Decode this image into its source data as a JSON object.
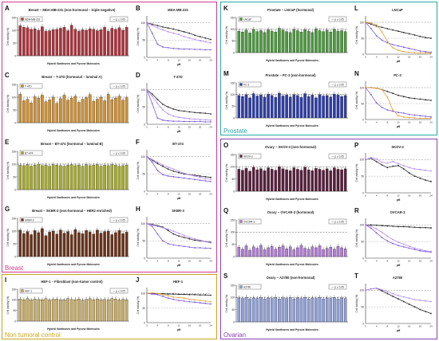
{
  "groups": {
    "breast": {
      "label": "Breast",
      "color": "#cc3c8c"
    },
    "noncontrol": {
      "label": "Non tumoral control",
      "color": "#c7a61d"
    },
    "prostate": {
      "label": "Prostate",
      "color": "#2aa6a6"
    },
    "ovarian": {
      "label": "Ovarian",
      "color": "#8a3fb5"
    }
  },
  "shared": {
    "bar_xlabel": "Hybrid Xanthones and Pyrone Molecules",
    "bar_ylabel": "Cell viability (%)",
    "line_ylabel": "Cell viability (%)",
    "line_xlabel": "μM",
    "significance": "p ≤ 0.05"
  },
  "chart_data": [
    {
      "id": "A",
      "type": "bar",
      "title": "Breast – MDA-MB-231 (non-hormonal – triple negative)",
      "legend": "MDA-MB-231",
      "color": "#b0323a",
      "ylim": [
        0,
        150
      ],
      "values": [
        118,
        112,
        110,
        104,
        106,
        100,
        114,
        96,
        98,
        102,
        104,
        108,
        112,
        98,
        120,
        104,
        96,
        102,
        100,
        106,
        104,
        98,
        102,
        112,
        96,
        108,
        104,
        110,
        100,
        112
      ]
    },
    {
      "id": "B",
      "type": "line",
      "title": "MDA-MB-231",
      "ylim": [
        0,
        120
      ],
      "x": [
        0,
        2,
        4,
        6,
        8,
        10,
        12,
        14,
        16,
        18,
        20,
        22,
        24
      ],
      "series": [
        {
          "color": "#2a2a2a",
          "values": [
            100,
            96,
            92,
            88,
            85,
            82,
            78,
            74,
            70,
            64,
            60,
            56,
            52
          ]
        },
        {
          "color": "#7a5cd6",
          "values": [
            100,
            70,
            38,
            30,
            28,
            26,
            25,
            24,
            24,
            23,
            23,
            22,
            22
          ]
        },
        {
          "color": "#b38cf0",
          "values": [
            100,
            92,
            86,
            80,
            74,
            70,
            66,
            60,
            56,
            52,
            48,
            45,
            42
          ]
        }
      ]
    },
    {
      "id": "C",
      "type": "bar",
      "title": "Breast – T-47D (hormonal – luminal A)",
      "legend": "T-47D",
      "color": "#d1902f",
      "ylim": [
        0,
        150
      ],
      "values": [
        112,
        86,
        92,
        78,
        102,
        96,
        108,
        82,
        90,
        100,
        76,
        94,
        108,
        88,
        96,
        104,
        80,
        92,
        98,
        110,
        84,
        92,
        100,
        86,
        112,
        90,
        96,
        104,
        88,
        98
      ]
    },
    {
      "id": "D",
      "type": "line",
      "title": "T-47D",
      "ylim": [
        0,
        120
      ],
      "x": [
        0,
        2,
        4,
        6,
        8,
        10,
        12,
        14,
        16,
        18,
        20,
        22,
        24
      ],
      "series": [
        {
          "color": "#2a2a2a",
          "values": [
            100,
            88,
            72,
            58,
            50,
            44,
            40,
            38,
            36,
            34,
            33,
            32,
            30
          ]
        },
        {
          "color": "#7a5cd6",
          "values": [
            100,
            60,
            18,
            12,
            10,
            9,
            9,
            8,
            8,
            8,
            8,
            7,
            7
          ]
        },
        {
          "color": "#b38cf0",
          "values": [
            100,
            82,
            60,
            42,
            30,
            24,
            20,
            18,
            16,
            15,
            14,
            13,
            12
          ]
        }
      ]
    },
    {
      "id": "E",
      "type": "bar",
      "title": "Breast – BT-474 (hormonal – luminal B)",
      "legend": "BT-474",
      "color": "#a7ab2a",
      "ylim": [
        0,
        150
      ],
      "values": [
        96,
        94,
        98,
        92,
        96,
        100,
        94,
        96,
        92,
        98,
        96,
        94,
        92,
        96,
        98,
        94,
        96,
        92,
        98,
        94,
        96,
        98,
        92,
        96,
        94,
        98,
        96,
        92,
        94,
        96
      ]
    },
    {
      "id": "F",
      "type": "line",
      "title": "BT-474",
      "ylim": [
        0,
        120
      ],
      "x": [
        0,
        2,
        4,
        6,
        8,
        10,
        12,
        14,
        16,
        18,
        20,
        22,
        24
      ],
      "series": [
        {
          "color": "#2a2a2a",
          "values": [
            100,
            90,
            80,
            72,
            64,
            58,
            54,
            50,
            48,
            46,
            44,
            42,
            40
          ]
        },
        {
          "color": "#7a5cd6",
          "values": [
            100,
            84,
            60,
            48,
            44,
            42,
            40,
            38,
            36,
            34,
            32,
            30,
            28
          ]
        },
        {
          "color": "#b38cf0",
          "values": [
            100,
            92,
            84,
            76,
            70,
            64,
            58,
            52,
            48,
            44,
            40,
            36,
            34
          ]
        }
      ]
    },
    {
      "id": "G",
      "type": "bar",
      "title": "Breast – SKBR-3 (non-hormonal – HER2 enriched)",
      "legend": "SKBR-3",
      "color": "#6b3218",
      "ylim": [
        0,
        150
      ],
      "values": [
        104,
        90,
        98,
        86,
        102,
        94,
        110,
        82,
        96,
        100,
        88,
        104,
        92,
        98,
        86,
        106,
        94,
        90,
        102,
        96,
        88,
        104,
        92,
        98,
        100,
        86,
        94,
        102,
        90,
        96
      ]
    },
    {
      "id": "H",
      "type": "line",
      "title": "SKBR-3",
      "ylim": [
        0,
        120
      ],
      "x": [
        0,
        2,
        4,
        6,
        8,
        10,
        12,
        14,
        16,
        18,
        20,
        22,
        24
      ],
      "series": [
        {
          "color": "#2a2a2a",
          "values": [
            100,
            98,
            94,
            90,
            80,
            70,
            64,
            60,
            56,
            52,
            50,
            48,
            46
          ]
        },
        {
          "color": "#7a5cd6",
          "values": [
            100,
            92,
            70,
            50,
            42,
            38,
            36,
            34,
            32,
            30,
            30,
            29,
            28
          ]
        },
        {
          "color": "#b38cf0",
          "values": [
            100,
            96,
            92,
            88,
            84,
            78,
            72,
            66,
            60,
            56,
            52,
            48,
            44
          ]
        }
      ]
    },
    {
      "id": "I",
      "type": "bar",
      "title": "HEF-1 – Fibroblast (non-tumor control)",
      "legend": "HEF-1",
      "color": "#c9ad63",
      "ylim": [
        0,
        150
      ],
      "values": [
        104,
        100,
        106,
        98,
        104,
        102,
        100,
        106,
        98,
        102,
        104,
        100,
        98,
        106,
        102,
        100,
        104,
        98,
        102,
        106,
        100,
        104,
        98,
        102,
        100,
        106,
        104,
        98,
        102,
        100
      ]
    },
    {
      "id": "J",
      "type": "line",
      "title": "HEF-1",
      "ylim": [
        0,
        120
      ],
      "x": [
        0,
        2,
        4,
        6,
        8,
        10,
        12,
        14,
        16,
        18,
        20,
        22,
        24
      ],
      "series": [
        {
          "color": "#2a2a2a",
          "values": [
            100,
            100,
            99,
            99,
            98,
            98,
            97,
            97,
            96,
            96,
            95,
            95,
            94
          ]
        },
        {
          "color": "#7a5cd6",
          "values": [
            100,
            98,
            96,
            90,
            84,
            80,
            76,
            74,
            72,
            70,
            68,
            66,
            64
          ]
        },
        {
          "color": "#e3a23b",
          "values": [
            100,
            102,
            100,
            96,
            92,
            88,
            86,
            84,
            80,
            78,
            76,
            74,
            72
          ]
        }
      ]
    },
    {
      "id": "K",
      "type": "bar",
      "title": "Prostate – LNCaP (hormonal)",
      "legend": "LNCaP",
      "color": "#4a9b3c",
      "ylim": [
        0,
        150
      ],
      "values": [
        92,
        88,
        96,
        84,
        100,
        90,
        94,
        86,
        98,
        92,
        88,
        104,
        96,
        90,
        86,
        100,
        94,
        88,
        98,
        92,
        86,
        102,
        94,
        90,
        96,
        88,
        100,
        92,
        94,
        90
      ]
    },
    {
      "id": "L",
      "type": "line",
      "title": "LNCaP",
      "ylim": [
        0,
        120
      ],
      "x": [
        0,
        2,
        4,
        6,
        8,
        10,
        12,
        14,
        16,
        18,
        20,
        22,
        24
      ],
      "series": [
        {
          "color": "#2a2a2a",
          "values": [
            100,
            94,
            88,
            84,
            80,
            76,
            72,
            68,
            64,
            60,
            56,
            52,
            50
          ]
        },
        {
          "color": "#7a5cd6",
          "values": [
            100,
            80,
            58,
            44,
            36,
            30,
            26,
            22,
            18,
            14,
            10,
            8,
            6
          ]
        },
        {
          "color": "#e3a23b",
          "values": [
            100,
            98,
            92,
            70,
            40,
            20,
            12,
            8,
            6,
            5,
            4,
            4,
            3
          ]
        }
      ]
    },
    {
      "id": "M",
      "type": "bar",
      "title": "Prostate – PC-3 (non-hormonal)",
      "legend": "PC-3",
      "color": "#2c3dab",
      "ylim": [
        0,
        150
      ],
      "values": [
        96,
        92,
        100,
        86,
        104,
        94,
        98,
        90,
        102,
        96,
        88,
        106,
        94,
        98,
        90,
        100,
        96,
        88,
        104,
        92,
        98,
        86,
        100,
        94,
        96,
        90,
        102,
        98,
        92,
        96
      ]
    },
    {
      "id": "N",
      "type": "line",
      "title": "PC-3",
      "ylim": [
        0,
        120
      ],
      "x": [
        0,
        2,
        4,
        6,
        8,
        10,
        12,
        14,
        16,
        18,
        20,
        22,
        24
      ],
      "series": [
        {
          "color": "#2a2a2a",
          "values": [
            100,
            100,
            98,
            94,
            88,
            82,
            76,
            72,
            68,
            66,
            64,
            62,
            60
          ]
        },
        {
          "color": "#7a5cd6",
          "values": [
            100,
            78,
            52,
            38,
            30,
            26,
            22,
            20,
            16,
            14,
            12,
            10,
            8
          ]
        },
        {
          "color": "#e3a23b",
          "values": [
            100,
            100,
            98,
            94,
            70,
            30,
            12,
            8,
            6,
            5,
            4,
            4,
            4
          ]
        }
      ]
    },
    {
      "id": "O",
      "type": "bar",
      "title": "Ovary – SKOV-3 (non-hormonal)",
      "legend": "SKOV-3",
      "color": "#5a1e3c",
      "ylim": [
        0,
        150
      ],
      "values": [
        90,
        86,
        94,
        82,
        98,
        88,
        92,
        84,
        96,
        90,
        86,
        100,
        92,
        88,
        84,
        96,
        90,
        86,
        98,
        88,
        84,
        94,
        90,
        86,
        92,
        84,
        96,
        90,
        88,
        92
      ]
    },
    {
      "id": "P",
      "type": "line",
      "title": "SKOV-3",
      "ylim": [
        0,
        120
      ],
      "x": [
        0,
        2,
        4,
        6,
        8,
        10,
        12,
        14,
        16,
        18,
        20,
        22,
        24
      ],
      "series": [
        {
          "color": "#2a2a2a",
          "values": [
            100,
            104,
            94,
            84,
            76,
            80,
            82,
            72,
            60,
            50,
            44,
            38,
            34
          ]
        },
        {
          "color": "#b38cf0",
          "values": [
            100,
            106,
            102,
            92,
            90,
            94,
            88,
            82,
            76,
            72,
            70,
            68,
            66
          ]
        }
      ]
    },
    {
      "id": "Q",
      "type": "bar",
      "title": "Ovary – OVCAR-3 (hormonal)",
      "legend": "OVCAR-3",
      "color": "#b07ad6",
      "ylim": [
        0,
        150
      ],
      "values": [
        38,
        30,
        44,
        26,
        40,
        34,
        46,
        28,
        36,
        42,
        30,
        38,
        44,
        32,
        40,
        28,
        36,
        46,
        34,
        30,
        40,
        36,
        44,
        28,
        34,
        38,
        30,
        42,
        36,
        32
      ]
    },
    {
      "id": "R",
      "type": "line",
      "title": "OVCAR-3",
      "ylim": [
        0,
        120
      ],
      "x": [
        0,
        2,
        4,
        6,
        8,
        10,
        12,
        14,
        16,
        18,
        20,
        22,
        24
      ],
      "series": [
        {
          "color": "#2a2a2a",
          "values": [
            100,
            100,
            99,
            98,
            97,
            96,
            95,
            95,
            94,
            93,
            92,
            92,
            91
          ]
        },
        {
          "color": "#7a5cd6",
          "values": [
            100,
            90,
            76,
            62,
            52,
            44,
            38,
            34,
            30,
            26,
            22,
            20,
            18
          ]
        },
        {
          "color": "#b38cf0",
          "values": [
            100,
            96,
            88,
            78,
            66,
            56,
            48,
            42,
            36,
            30,
            26,
            22,
            20
          ]
        }
      ]
    },
    {
      "id": "S",
      "type": "bar",
      "title": "Ovary – A2780 (non-hormonal)",
      "legend": "A2780",
      "color": "#8f9fdc",
      "ylim": [
        0,
        150
      ],
      "values": [
        98,
        96,
        100,
        94,
        98,
        96,
        100,
        94,
        98,
        96,
        100,
        94,
        98,
        96,
        100,
        94,
        98,
        96,
        100,
        94,
        98,
        96,
        100,
        94,
        98,
        96,
        100,
        94,
        98,
        96
      ]
    },
    {
      "id": "T",
      "type": "line",
      "title": "A2780",
      "ylim": [
        0,
        120
      ],
      "x": [
        0,
        2,
        4,
        6,
        8,
        10,
        12,
        14,
        16,
        18,
        20,
        22,
        24
      ],
      "series": [
        {
          "color": "#2a2a2a",
          "values": [
            100,
            104,
            106,
            98,
            90,
            82,
            74,
            66,
            58,
            50,
            42,
            36,
            30
          ]
        },
        {
          "color": "#b38cf0",
          "values": [
            100,
            104,
            106,
            102,
            96,
            90,
            84,
            80,
            76,
            72,
            70,
            68,
            66
          ]
        }
      ]
    }
  ]
}
